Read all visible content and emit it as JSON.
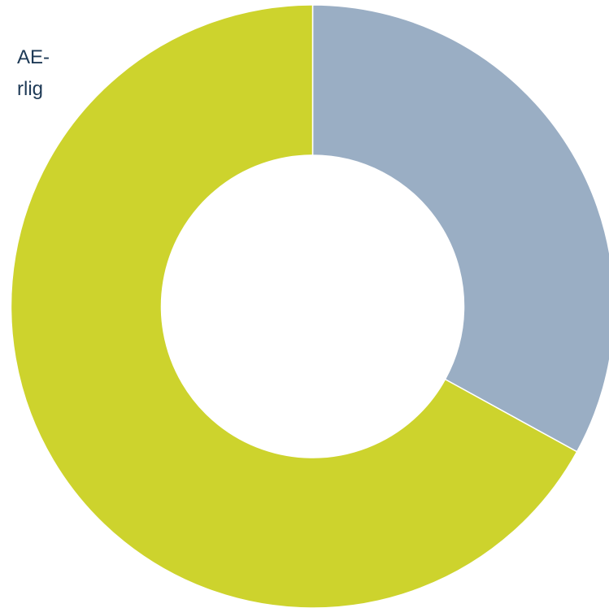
{
  "chart_data": {
    "type": "pie",
    "variant": "donut",
    "title": "",
    "series": [
      {
        "values": [
          0.33,
          0.67
        ],
        "colors": [
          "#9aaec4",
          "#cdd32d"
        ]
      }
    ],
    "annotation_lines": [
      "AE-",
      "rlig"
    ],
    "legend": "none",
    "grid": false
  }
}
